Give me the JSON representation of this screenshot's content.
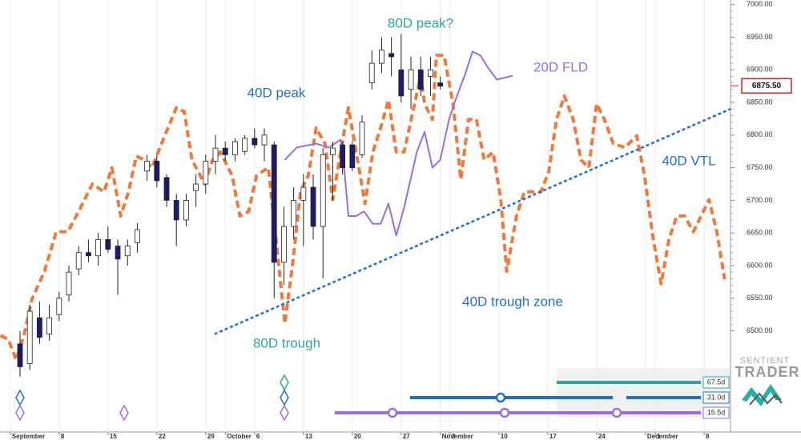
{
  "chart_data": {
    "type": "candlestick",
    "x": [
      1,
      2,
      3,
      4,
      5,
      6,
      7,
      8,
      9,
      10,
      11,
      12,
      13,
      14,
      15,
      16,
      17,
      18,
      19,
      20,
      21,
      22,
      23,
      24,
      25,
      26,
      27,
      28,
      29,
      30,
      31,
      32,
      33,
      34,
      35,
      36,
      37,
      38,
      39,
      40,
      41,
      42,
      43,
      44
    ],
    "open": [
      6480,
      6450,
      6520,
      6495,
      6525,
      6555,
      6595,
      6620,
      6615,
      6640,
      6630,
      6615,
      6635,
      6745,
      6760,
      6735,
      6700,
      6670,
      6715,
      6725,
      6760,
      6780,
      6770,
      6775,
      6795,
      6785,
      6785,
      6605,
      6660,
      6700,
      6720,
      6660,
      6770,
      6785,
      6785,
      6770,
      6880,
      6910,
      6925,
      6900,
      6870,
      6900,
      6890,
      6880
    ],
    "high": [
      6500,
      6540,
      6545,
      6540,
      6560,
      6600,
      6630,
      6640,
      6650,
      6660,
      6640,
      6640,
      6665,
      6770,
      6770,
      6740,
      6710,
      6710,
      6740,
      6770,
      6800,
      6790,
      6795,
      6800,
      6810,
      6810,
      6790,
      6690,
      6720,
      6740,
      6740,
      6780,
      6790,
      6790,
      6790,
      6830,
      6930,
      6950,
      6950,
      6955,
      6920,
      6920,
      6920,
      6890
    ],
    "low": [
      6430,
      6440,
      6480,
      6485,
      6515,
      6545,
      6585,
      6605,
      6600,
      6620,
      6555,
      6600,
      6620,
      6730,
      6720,
      6690,
      6630,
      6660,
      6690,
      6710,
      6740,
      6760,
      6760,
      6770,
      6780,
      6760,
      6550,
      6570,
      6640,
      6630,
      6640,
      6580,
      6700,
      6740,
      6745,
      6765,
      6870,
      6895,
      6890,
      6850,
      6840,
      6860,
      6860,
      6870
    ],
    "close": [
      6445,
      6530,
      6490,
      6520,
      6550,
      6590,
      6620,
      6615,
      6640,
      6625,
      6610,
      6630,
      6655,
      6760,
      6730,
      6700,
      6670,
      6700,
      6725,
      6760,
      6780,
      6770,
      6790,
      6795,
      6785,
      6800,
      6605,
      6660,
      6700,
      6720,
      6660,
      6770,
      6780,
      6750,
      6750,
      6820,
      6910,
      6930,
      6920,
      6860,
      6900,
      6870,
      6900,
      6875
    ],
    "up_color": "#ffffff",
    "down_color": "#1c1c6b",
    "xlim": [
      -1.05,
      73.7
    ],
    "ylim": [
      6345,
      7007
    ],
    "yticks": [
      {
        "value": 6500,
        "label": "6500.00"
      },
      {
        "value": 6550,
        "label": "6550.00"
      },
      {
        "value": 6600,
        "label": "6600.00"
      },
      {
        "value": 6650,
        "label": "6650.00"
      },
      {
        "value": 6700,
        "label": "6700.00"
      },
      {
        "value": 6750,
        "label": "6750.00"
      },
      {
        "value": 6800,
        "label": "6800.00"
      },
      {
        "value": 6850,
        "label": "6850.00"
      },
      {
        "value": 6900,
        "label": "6900.00"
      },
      {
        "value": 6950,
        "label": "6950.00"
      },
      {
        "value": 7000,
        "label": "7000.00"
      }
    ],
    "xticks": [
      {
        "value": 0,
        "label": "September"
      },
      {
        "value": 5,
        "label": "8"
      },
      {
        "value": 10,
        "label": "15"
      },
      {
        "value": 15,
        "label": "22"
      },
      {
        "value": 20,
        "label": "29"
      },
      {
        "value": 22,
        "label": "October"
      },
      {
        "value": 25,
        "label": "6"
      },
      {
        "value": 30,
        "label": "13"
      },
      {
        "value": 35,
        "label": "20"
      },
      {
        "value": 40,
        "label": "27"
      },
      {
        "value": 44,
        "label": "November"
      },
      {
        "value": 45,
        "label": "3"
      },
      {
        "value": 50,
        "label": "10"
      },
      {
        "value": 55,
        "label": "17"
      },
      {
        "value": 60,
        "label": "24"
      },
      {
        "value": 65,
        "label": "December"
      },
      {
        "value": 66,
        "label": "1"
      },
      {
        "value": 71,
        "label": "8"
      }
    ],
    "grid": "x",
    "last_price": {
      "value": 6875.5,
      "label": "6875.50",
      "color": "#d62020"
    },
    "overlays": [
      {
        "color": "#f07a3c",
        "dash": true,
        "x": [
          -1.0,
          -0.2,
          0.6,
          1.4,
          2.2,
          3.5,
          4.7,
          5.9,
          7.2,
          8.4,
          9.6,
          10.4,
          11.3,
          12.1,
          12.9,
          13.7,
          14.5,
          15.8,
          17.0,
          17.8,
          18.6,
          19.9,
          20.7,
          21.5,
          22.7,
          23.5,
          24.4,
          25.2,
          26.4,
          27.2,
          28.1,
          28.9,
          29.7,
          30.5,
          31.3,
          32.2,
          33.0,
          33.8,
          34.6,
          35.4,
          36.3,
          37.1,
          37.9,
          38.7,
          39.5,
          40.3,
          41.2,
          42.0,
          42.4,
          43.2,
          43.6,
          44.4,
          45.3,
          46.1,
          46.9,
          47.7,
          48.5,
          49.4,
          50.2,
          50.8,
          51.8,
          52.6,
          53.5,
          54.3,
          55.1,
          55.9,
          56.7,
          57.6,
          58.4,
          59.2,
          60.0,
          60.8,
          61.7,
          62.9,
          64.1,
          64.9,
          65.8,
          66.6,
          67.4,
          68.2,
          69.0,
          69.9,
          70.7,
          71.5,
          72.3,
          73.1
        ],
        "values": [
          6493,
          6487,
          6456,
          6493,
          6548,
          6591,
          6652,
          6652,
          6689,
          6725,
          6713,
          6750,
          6676,
          6713,
          6768,
          6762,
          6750,
          6799,
          6842,
          6836,
          6762,
          6725,
          6762,
          6774,
          6738,
          6676,
          6683,
          6738,
          6750,
          6640,
          6511,
          6603,
          6713,
          6738,
          6811,
          6787,
          6701,
          6774,
          6842,
          6774,
          6695,
          6774,
          6811,
          6854,
          6774,
          6774,
          6836,
          6891,
          6848,
          6824,
          6922,
          6922,
          6848,
          6732,
          6824,
          6824,
          6762,
          6774,
          6701,
          6591,
          6676,
          6713,
          6713,
          6713,
          6744,
          6824,
          6860,
          6824,
          6762,
          6750,
          6848,
          6824,
          6787,
          6781,
          6799,
          6738,
          6640,
          6572,
          6640,
          6676,
          6676,
          6652,
          6676,
          6701,
          6652,
          6579
        ]
      },
      {
        "color": "#9b6fd8",
        "dash": false,
        "x": [
          28.1,
          29.3,
          31.3,
          32.6,
          33.8,
          34.2,
          34.6,
          35.4,
          36.2,
          37.1,
          37.9,
          38.7,
          39.5,
          40.3,
          41.6,
          42.4,
          43.2,
          44.0,
          44.9,
          45.7,
          46.5,
          47.3,
          48.1,
          48.9,
          49.8,
          51.4
        ],
        "values": [
          6762,
          6781,
          6787,
          6781,
          6793,
          6744,
          6676,
          6676,
          6683,
          6664,
          6664,
          6695,
          6646,
          6689,
          6774,
          6805,
          6750,
          6762,
          6824,
          6860,
          6891,
          6928,
          6922,
          6903,
          6885,
          6891
        ]
      },
      {
        "color": "#1f6fd0",
        "dash": "dot",
        "x": [
          20.9,
          73.7
        ],
        "values": [
          6495,
          6840
        ]
      }
    ],
    "annotations": [
      {
        "text": "80D peak?",
        "color": "#2aa8a0"
      },
      {
        "text": "40D peak",
        "color": "#1f6fd0"
      },
      {
        "text": "20D FLD",
        "color": "#9b6fd8"
      },
      {
        "text": "40D VTL",
        "color": "#1f6fd0"
      },
      {
        "text": "40D trough zone",
        "color": "#1f6fd0"
      },
      {
        "text": "80D trough",
        "color": "#2aa8a0"
      }
    ]
  },
  "cycles": [
    {
      "label": "67.5d",
      "color": "#2aa8a0"
    },
    {
      "label": "31.0d",
      "color": "#1f6fd0"
    },
    {
      "label": "15.5d",
      "color": "#9b6fd8"
    }
  ],
  "logo": {
    "line1": "SENTIENT",
    "line2": "TRADER"
  }
}
